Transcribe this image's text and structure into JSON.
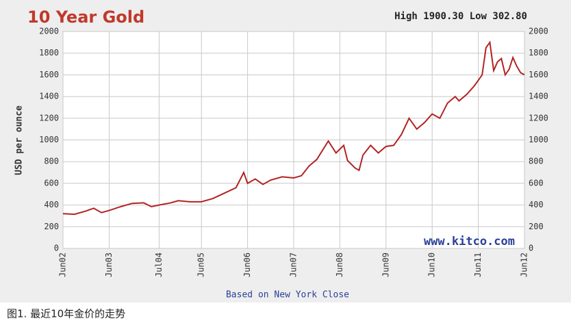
{
  "chart_data": {
    "type": "line",
    "title": "10 Year Gold",
    "subtitle": "High 1900.30 Low 302.80",
    "y_label": "USD per ounce",
    "x_label": "Based on New York Close",
    "annotation": "www.kitco.com",
    "caption": "图1. 最近10年金价的走势",
    "x": [
      0,
      3,
      6,
      8,
      10,
      12,
      15,
      18,
      21,
      23,
      25,
      28,
      30,
      33,
      36,
      39,
      42,
      45,
      47,
      48,
      50,
      52,
      54,
      57,
      60,
      62,
      64,
      66,
      69,
      71,
      73,
      74,
      76,
      77,
      78,
      80,
      82,
      84,
      86,
      88,
      90,
      92,
      94,
      96,
      98,
      100,
      102,
      103,
      105,
      107,
      109,
      110,
      111,
      112,
      113,
      114,
      115,
      116,
      117,
      118,
      119,
      120
    ],
    "series": [
      {
        "name": "Gold",
        "color": "#b22222",
        "values": [
          320,
          315,
          345,
          370,
          330,
          350,
          385,
          415,
          420,
          385,
          400,
          420,
          440,
          430,
          430,
          460,
          510,
          560,
          700,
          600,
          640,
          590,
          630,
          660,
          650,
          670,
          760,
          820,
          990,
          880,
          950,
          810,
          740,
          720,
          860,
          950,
          880,
          940,
          950,
          1050,
          1200,
          1100,
          1160,
          1240,
          1200,
          1340,
          1400,
          1360,
          1420,
          1500,
          1600,
          1850,
          1900,
          1640,
          1720,
          1750,
          1600,
          1650,
          1760,
          1680,
          1620,
          1600
        ]
      }
    ],
    "xlim": [
      0,
      120
    ],
    "xticks": [
      {
        "value": 0,
        "label": "Jun02"
      },
      {
        "value": 12,
        "label": "Jun03"
      },
      {
        "value": 25,
        "label": "Jul04"
      },
      {
        "value": 36,
        "label": "Jun05"
      },
      {
        "value": 48,
        "label": "Jun06"
      },
      {
        "value": 60,
        "label": "Jun07"
      },
      {
        "value": 72,
        "label": "Jun08"
      },
      {
        "value": 84,
        "label": "Jun09"
      },
      {
        "value": 96,
        "label": "Jun10"
      },
      {
        "value": 108,
        "label": "Jun11"
      },
      {
        "value": 120,
        "label": "Jun12"
      }
    ],
    "ylim": [
      0,
      2000
    ],
    "yticks": [
      0,
      200,
      400,
      600,
      800,
      1000,
      1200,
      1400,
      1600,
      1800,
      2000
    ],
    "grid": true
  }
}
